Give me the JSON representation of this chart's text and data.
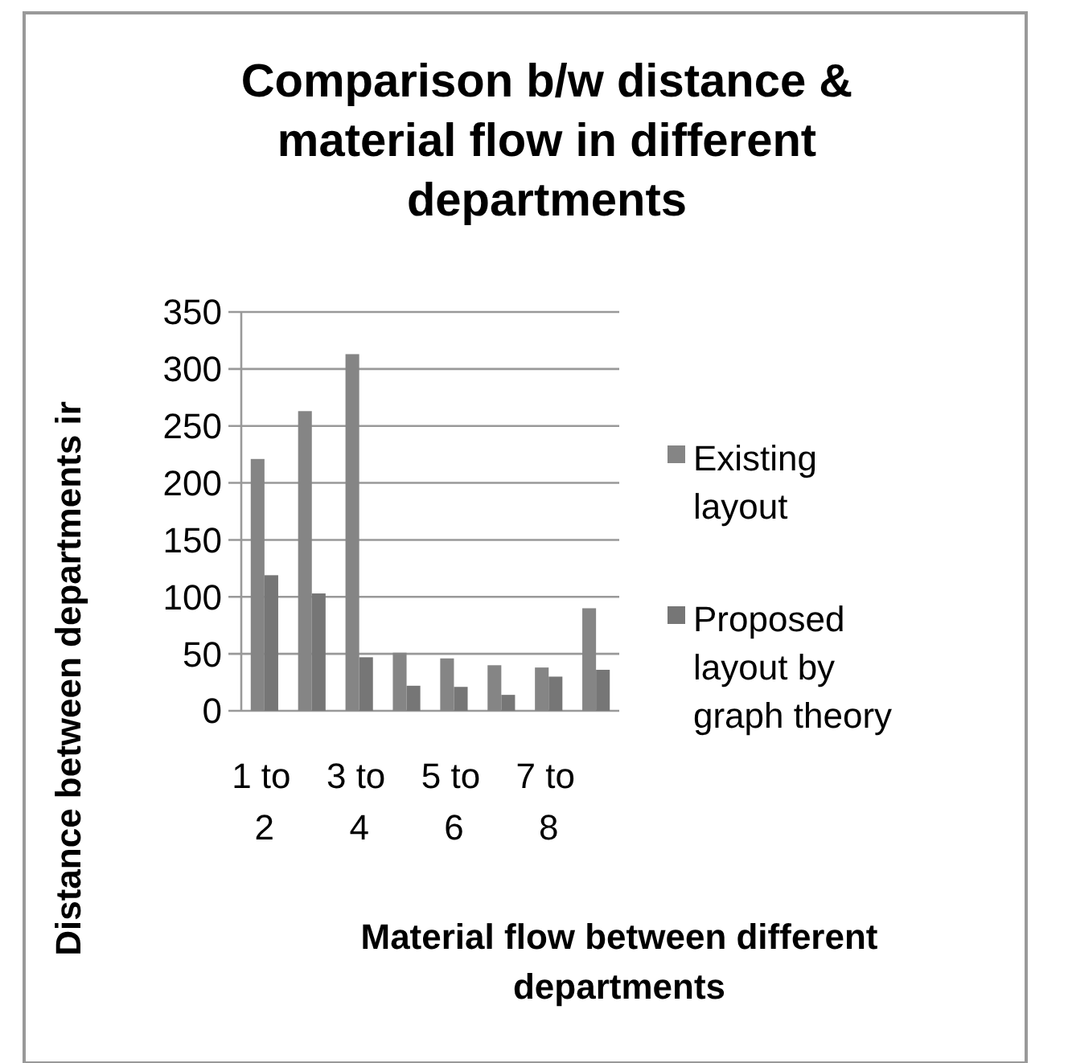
{
  "chart_data": {
    "type": "bar",
    "title": "Comparison b/w distance & material flow in different departments",
    "xlabel": "Material flow between different departments",
    "ylabel": "Distance between departments ir",
    "categories": [
      "1 to 2",
      null,
      "3 to 4",
      null,
      "5 to 6",
      null,
      "7 to 8",
      null
    ],
    "series": [
      {
        "name": "Existing layout",
        "color": "#858585",
        "values": [
          221,
          263,
          313,
          51,
          46,
          40,
          38,
          90
        ]
      },
      {
        "name": "Proposed layout by graph theory",
        "color": "#767676",
        "values": [
          119,
          103,
          47,
          22,
          21,
          14,
          30,
          36
        ]
      }
    ],
    "ylim": [
      0,
      350
    ],
    "yticks": [
      0,
      50,
      100,
      150,
      200,
      250,
      300,
      350
    ],
    "grid": "y",
    "legend": "right"
  }
}
